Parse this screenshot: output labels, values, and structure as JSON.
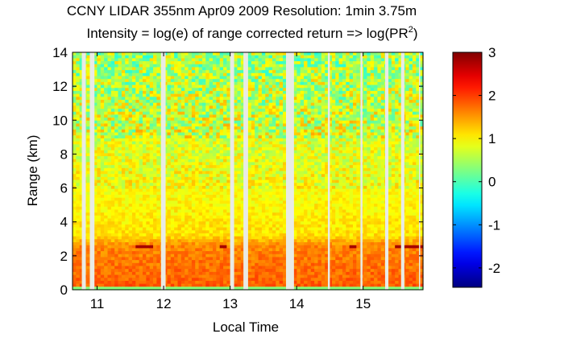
{
  "chart_data": {
    "type": "heatmap",
    "title": "CCNY LIDAR 355nm Apr09 2009 Resolution: 1min 3.75m",
    "subtitle_main": "Intensity = log(e) of range corrected return => log(PR",
    "subtitle_sup": "2",
    "subtitle_tail": ")",
    "xlabel": "Local Time",
    "ylabel": "Range (km)",
    "xlim": [
      10.63,
      15.9
    ],
    "ylim": [
      0,
      14
    ],
    "xticks": [
      11,
      12,
      13,
      14,
      15
    ],
    "yticks": [
      0,
      2,
      4,
      6,
      8,
      10,
      12,
      14
    ],
    "colorbar": {
      "clim": [
        -2.45,
        3
      ],
      "ticks": [
        -2,
        -1,
        0,
        1,
        2,
        3
      ],
      "colormap": "jet"
    },
    "gaps": [
      {
        "start": 10.77,
        "end": 10.83
      },
      {
        "start": 10.89,
        "end": 10.96
      },
      {
        "start": 11.96,
        "end": 12.03
      },
      {
        "start": 13.0,
        "end": 13.06
      },
      {
        "start": 13.2,
        "end": 13.27
      },
      {
        "start": 13.84,
        "end": 13.96
      },
      {
        "start": 14.47,
        "end": 14.5
      },
      {
        "start": 14.96,
        "end": 14.99
      },
      {
        "start": 15.33,
        "end": 15.38
      },
      {
        "start": 15.57,
        "end": 15.62
      },
      {
        "start": 15.84,
        "end": 15.85
      }
    ],
    "cloud_layer_km": 2.55,
    "boundary_layer_km": 2.6,
    "colors": {
      "gap": "#e9ebe5"
    }
  }
}
